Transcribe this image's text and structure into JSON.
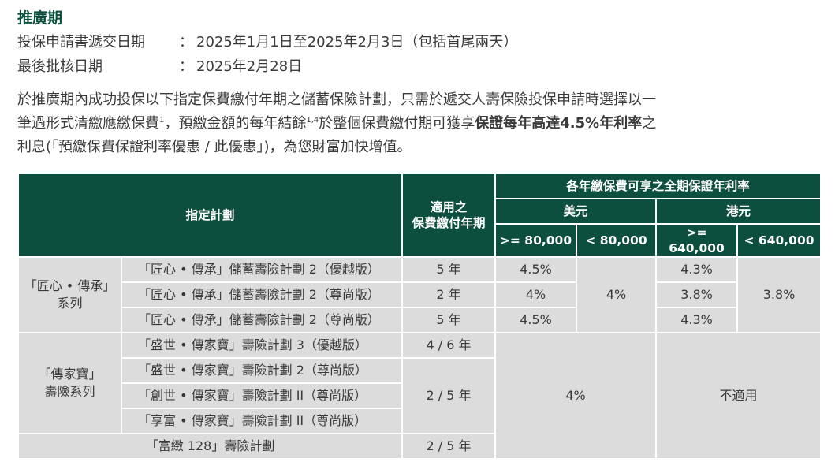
{
  "title": "推廣期",
  "meta": [
    {
      "label": "投保申請書遞交日期",
      "colon": "：",
      "value": "2025年1月1日至2025年2月3日（包括首尾兩天）"
    },
    {
      "label": "最後批核日期",
      "colon": "：",
      "value": "2025年2月28日"
    }
  ],
  "paragraph": {
    "p1": "於推廣期內成功投保以下指定保費繳付年期之儲蓄保險計劃，只需於遞交人壽保險投保申請時選擇以一",
    "p2": "筆過形式清繳應繳保費",
    "sup1": "1",
    "p3": "，預繳金額的每年結餘",
    "sup2": "1,4",
    "p4": "於整個保費繳付期可獲享",
    "bold": "保證每年高達4.5%年利率",
    "p5": "之",
    "p6": "利息(「預繳保費保證利率優惠 / 此優惠」)，為您財富加快增值。"
  },
  "table": {
    "headers": {
      "plan": "指定計劃",
      "term_line1": "適用之",
      "term_line2": "保費繳付年期",
      "rate": "各年繳保費可享之全期保證年利率",
      "usd": "美元",
      "hkd": "港元",
      "usd_ge": ">= 80,000",
      "usd_lt": "< 80,000",
      "hkd_ge": ">= 640,000",
      "hkd_lt": "< 640,000"
    },
    "group1": {
      "series_line1": "「匠心 • 傳承」",
      "series_line2": "系列",
      "rows": [
        {
          "name": "「匠心 • 傳承」儲蓄壽險計劃 2（優越版）",
          "term": "5 年",
          "usd_ge": "4.5%",
          "hkd_ge": "4.3%"
        },
        {
          "name": "「匠心 • 傳承」儲蓄壽險計劃 2（尊尚版）",
          "term": "2 年",
          "usd_ge": "4%",
          "hkd_ge": "3.8%"
        },
        {
          "name": "「匠心 • 傳承」儲蓄壽險計劃 2（尊尚版）",
          "term": "5 年",
          "usd_ge": "4.5%",
          "hkd_ge": "4.3%"
        }
      ],
      "usd_lt": "4%",
      "hkd_lt": "3.8%"
    },
    "group2": {
      "series_line1": "「傳家寶」",
      "series_line2": "壽險系列",
      "rows": [
        {
          "name": "「盛世 • 傳家寶」壽險計劃 3（優越版）"
        },
        {
          "name": "「盛世 • 傳家寶」壽險計劃 2（尊尚版）"
        },
        {
          "name": "「創世 • 傳家寶」壽險計劃 II（尊尚版）"
        },
        {
          "name": "「享富 • 傳家寶」壽險計劃 II（尊尚版）"
        }
      ],
      "term_a": "4 / 6 年",
      "term_b": "2 / 5 年"
    },
    "row_fucheng": {
      "name": "「富緻 128」壽險計劃",
      "term": "2 / 5 年"
    },
    "usd_rate_all": "4%",
    "hkd_na": "不適用"
  }
}
